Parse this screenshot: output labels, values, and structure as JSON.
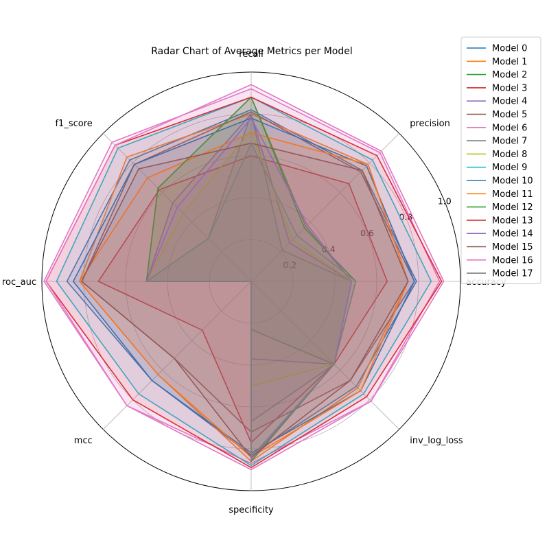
{
  "chart_data": {
    "type": "radar",
    "title": "Radar Chart of Average Metrics per Model",
    "axes": [
      "accuracy",
      "precision",
      "recall",
      "f1_score",
      "roc_auc",
      "mcc",
      "specificity",
      "inv_log_loss"
    ],
    "rlim": [
      0,
      1
    ],
    "rticks": [
      0.2,
      0.4,
      0.6,
      0.8,
      1.0
    ],
    "rtick_labels": [
      "0.2",
      "0.4",
      "0.6",
      "0.8",
      "1.0"
    ],
    "grid": true,
    "legend_position": "upper right, outside plot",
    "series": [
      {
        "name": "Model 0",
        "color": "#1f77b4",
        "values": [
          0.79,
          0.75,
          0.82,
          0.82,
          0.88,
          0.67,
          0.83,
          0.71
        ]
      },
      {
        "name": "Model 1",
        "color": "#ff7f0e",
        "values": [
          0.75,
          0.79,
          0.8,
          0.84,
          0.82,
          0.63,
          0.86,
          0.72
        ]
      },
      {
        "name": "Model 2",
        "color": "#2ca02c",
        "values": [
          0.48,
          0.37,
          0.88,
          0.63,
          0.5,
          0.0,
          0.23,
          0.56
        ]
      },
      {
        "name": "Model 3",
        "color": "#d62728",
        "values": [
          0.65,
          0.66,
          0.6,
          0.62,
          0.73,
          0.33,
          0.77,
          0.56
        ]
      },
      {
        "name": "Model 4",
        "color": "#9467bd",
        "values": [
          0.48,
          0.26,
          0.8,
          0.53,
          0.5,
          0.0,
          0.37,
          0.56
        ]
      },
      {
        "name": "Model 5",
        "color": "#8c564b",
        "values": [
          0.78,
          0.74,
          0.81,
          0.79,
          0.81,
          0.52,
          0.72,
          0.67
        ]
      },
      {
        "name": "Model 6",
        "color": "#e377c2",
        "values": [
          0.9,
          0.87,
          0.92,
          0.94,
          0.99,
          0.84,
          0.87,
          0.81
        ]
      },
      {
        "name": "Model 7",
        "color": "#7f7f7f",
        "values": [
          0.48,
          0.21,
          0.8,
          0.29,
          0.5,
          0.0,
          0.67,
          0.56
        ]
      },
      {
        "name": "Model 8",
        "color": "#bcbd22",
        "values": [
          0.48,
          0.28,
          0.72,
          0.46,
          0.5,
          0.0,
          0.5,
          0.56
        ]
      },
      {
        "name": "Model 9",
        "color": "#17becf",
        "values": [
          0.86,
          0.82,
          0.88,
          0.9,
          0.93,
          0.76,
          0.88,
          0.76
        ]
      },
      {
        "name": "Model 10",
        "color": "#1f77b4",
        "values": [
          0.78,
          0.78,
          0.78,
          0.79,
          0.85,
          0.67,
          0.82,
          0.74
        ]
      },
      {
        "name": "Model 11",
        "color": "#ff7f0e",
        "values": [
          0.75,
          0.79,
          0.71,
          0.7,
          0.82,
          0.63,
          0.84,
          0.74
        ]
      },
      {
        "name": "Model 12",
        "color": "#2ca02c",
        "values": [
          0.5,
          0.36,
          0.88,
          0.63,
          0.5,
          0.0,
          0.86,
          0.56
        ]
      },
      {
        "name": "Model 13",
        "color": "#d62728",
        "values": [
          0.91,
          0.85,
          0.88,
          0.92,
          0.98,
          0.8,
          0.89,
          0.78
        ]
      },
      {
        "name": "Model 14",
        "color": "#9467bd",
        "values": [
          0.48,
          0.38,
          0.78,
          0.5,
          0.5,
          0.0,
          0.85,
          0.56
        ]
      },
      {
        "name": "Model 15",
        "color": "#8c564b",
        "values": [
          0.75,
          0.75,
          0.66,
          0.76,
          0.81,
          0.52,
          0.84,
          0.67
        ]
      },
      {
        "name": "Model 16",
        "color": "#e377c2",
        "values": [
          0.92,
          0.88,
          0.94,
          0.92,
          0.98,
          0.84,
          0.9,
          0.81
        ]
      },
      {
        "name": "Model 17",
        "color": "#7f7f7f",
        "values": [
          0.5,
          0.31,
          0.66,
          0.29,
          0.5,
          0.0,
          0.84,
          0.56
        ]
      }
    ]
  }
}
